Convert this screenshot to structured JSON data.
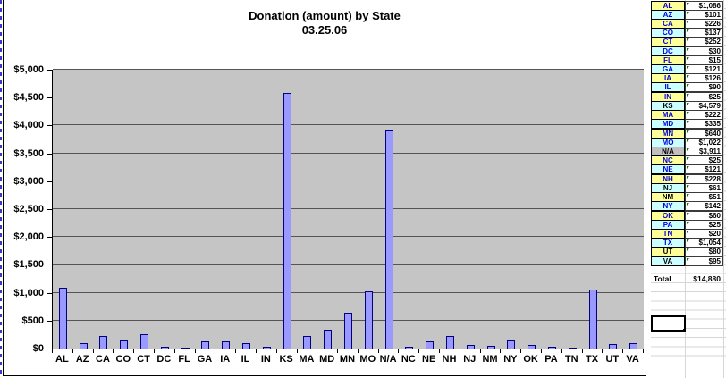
{
  "chart_data": {
    "type": "bar",
    "title": "Donation (amount) by State",
    "subtitle": "03.25.06",
    "categories": [
      "AL",
      "AZ",
      "CA",
      "CO",
      "CT",
      "DC",
      "FL",
      "GA",
      "IA",
      "IL",
      "IN",
      "KS",
      "MA",
      "MD",
      "MN",
      "MO",
      "N/A",
      "NC",
      "NE",
      "NH",
      "NJ",
      "NM",
      "NY",
      "OK",
      "PA",
      "TN",
      "TX",
      "UT",
      "VA"
    ],
    "values": [
      1086,
      101,
      226,
      137,
      252,
      30,
      15,
      121,
      126,
      90,
      25,
      4579,
      222,
      335,
      640,
      1022,
      3911,
      25,
      121,
      228,
      61,
      51,
      142,
      60,
      25,
      20,
      1054,
      80,
      95
    ],
    "xlabel": "",
    "ylabel": "",
    "ylim": [
      0,
      5000
    ],
    "ytick_step": 500,
    "ytick_labels": [
      "$0",
      "$500",
      "$1,000",
      "$1,500",
      "$2,000",
      "$2,500",
      "$3,000",
      "$3,500",
      "$4,000",
      "$4,500",
      "$5,000"
    ],
    "grid": true,
    "legend": false,
    "colors": {
      "bar_fill": "#9999FF",
      "bar_border": "#000080",
      "plot_bg": "#C5C5C5",
      "gridline": "#545454"
    }
  },
  "sheet": {
    "rows": [
      {
        "state": "AL",
        "amount": "$1,086",
        "bg": "yellow",
        "text": "blue"
      },
      {
        "state": "AZ",
        "amount": "$101",
        "bg": "cyan",
        "text": "blue"
      },
      {
        "state": "CA",
        "amount": "$226",
        "bg": "yellow",
        "text": "blue"
      },
      {
        "state": "CO",
        "amount": "$137",
        "bg": "cyan",
        "text": "blue"
      },
      {
        "state": "CT",
        "amount": "$252",
        "bg": "yellow",
        "text": "blue"
      },
      {
        "state": "DC",
        "amount": "$30",
        "bg": "cyan",
        "text": "blue"
      },
      {
        "state": "FL",
        "amount": "$15",
        "bg": "yellow",
        "text": "blue"
      },
      {
        "state": "GA",
        "amount": "$121",
        "bg": "cyan",
        "text": "blue"
      },
      {
        "state": "IA",
        "amount": "$126",
        "bg": "yellow",
        "text": "blue"
      },
      {
        "state": "IL",
        "amount": "$90",
        "bg": "cyan",
        "text": "blue"
      },
      {
        "state": "IN",
        "amount": "$25",
        "bg": "yellow",
        "text": "blue"
      },
      {
        "state": "KS",
        "amount": "$4,579",
        "bg": "cyan",
        "text": "black"
      },
      {
        "state": "MA",
        "amount": "$222",
        "bg": "yellow",
        "text": "blue"
      },
      {
        "state": "MD",
        "amount": "$335",
        "bg": "cyan",
        "text": "blue"
      },
      {
        "state": "MN",
        "amount": "$640",
        "bg": "yellow",
        "text": "blue"
      },
      {
        "state": "MO",
        "amount": "$1,022",
        "bg": "cyan",
        "text": "blue"
      },
      {
        "state": "N/A",
        "amount": "$3,911",
        "bg": "gray",
        "text": "black"
      },
      {
        "state": "NC",
        "amount": "$25",
        "bg": "yellow",
        "text": "blue"
      },
      {
        "state": "NE",
        "amount": "$121",
        "bg": "cyan",
        "text": "blue"
      },
      {
        "state": "NH",
        "amount": "$228",
        "bg": "yellow",
        "text": "blue"
      },
      {
        "state": "NJ",
        "amount": "$61",
        "bg": "cyan",
        "text": "black"
      },
      {
        "state": "NM",
        "amount": "$51",
        "bg": "yellow",
        "text": "black"
      },
      {
        "state": "NY",
        "amount": "$142",
        "bg": "cyan",
        "text": "blue"
      },
      {
        "state": "OK",
        "amount": "$60",
        "bg": "yellow",
        "text": "blue"
      },
      {
        "state": "PA",
        "amount": "$25",
        "bg": "cyan",
        "text": "blue"
      },
      {
        "state": "TN",
        "amount": "$20",
        "bg": "yellow",
        "text": "blue"
      },
      {
        "state": "TX",
        "amount": "$1,054",
        "bg": "cyan",
        "text": "blue"
      },
      {
        "state": "UT",
        "amount": "$80",
        "bg": "yellow",
        "text": "black"
      },
      {
        "state": "VA",
        "amount": "$95",
        "bg": "cyan",
        "text": "black"
      }
    ],
    "total_label": "Total",
    "total_value": "$14,880",
    "colors": {
      "yellow": "#FFFF99",
      "cyan": "#CCFFFF",
      "gray": "#C0C0C0",
      "blue": "#0000E0",
      "black": "#000000"
    }
  }
}
